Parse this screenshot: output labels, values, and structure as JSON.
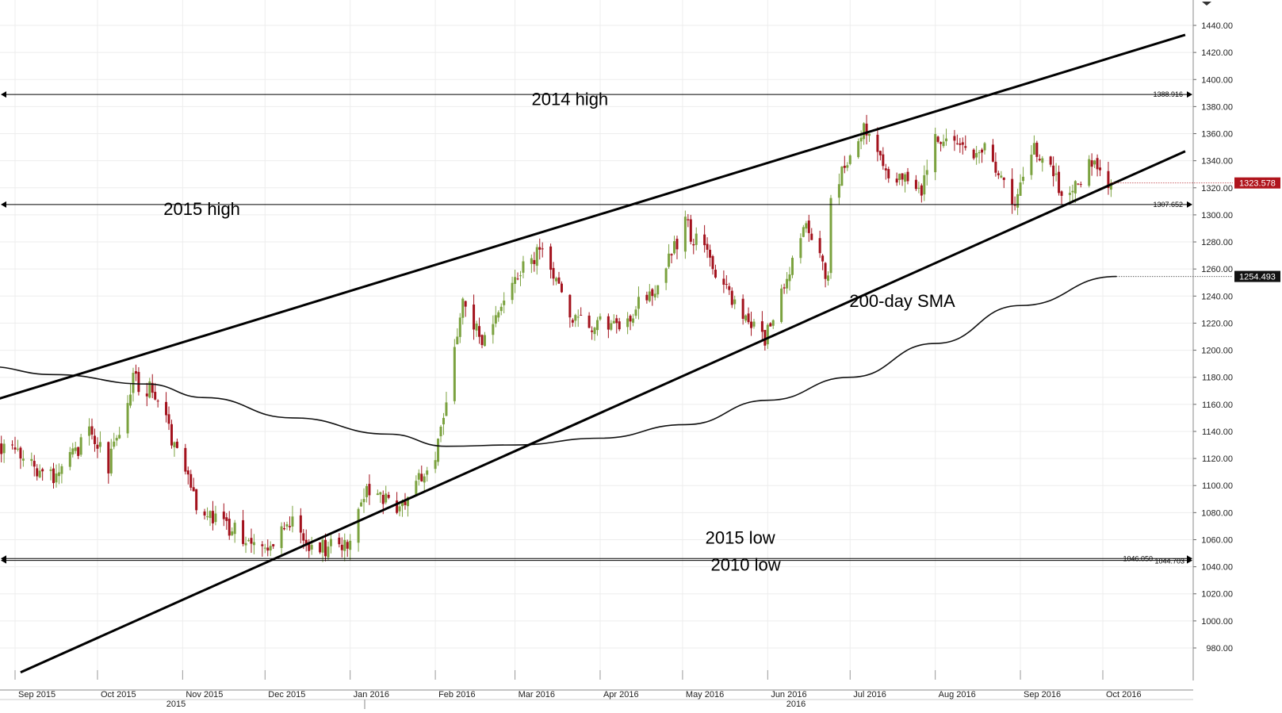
{
  "chart_data": {
    "type": "candlestick",
    "ylim": [
      960,
      1460
    ],
    "y_ticks": [
      "980.00",
      "1000.00",
      "1020.00",
      "1040.00",
      "1060.00",
      "1080.00",
      "1100.00",
      "1120.00",
      "1140.00",
      "1160.00",
      "1180.00",
      "1200.00",
      "1220.00",
      "1240.00",
      "1260.00",
      "1280.00",
      "1300.00",
      "1320.00",
      "1340.00",
      "1360.00",
      "1380.00",
      "1400.00",
      "1420.00",
      "1440.00"
    ],
    "months": [
      "Sep 2015",
      "Oct 2015",
      "Nov 2015",
      "Dec 2015",
      "Jan 2016",
      "Feb 2016",
      "Mar 2016",
      "Apr 2016",
      "May 2016",
      "Jun 2016",
      "Jul 2016",
      "Aug 2016",
      "Sep 2016",
      "Oct 2016"
    ],
    "years": [
      "2015",
      "2016"
    ],
    "price_keypoints": [
      {
        "date": "2015-08-24",
        "close": 1130
      },
      {
        "date": "2015-09-03",
        "close": 1122
      },
      {
        "date": "2015-09-16",
        "close": 1103
      },
      {
        "date": "2015-09-28",
        "close": 1140
      },
      {
        "date": "2015-10-05",
        "close": 1115
      },
      {
        "date": "2015-10-14",
        "close": 1178
      },
      {
        "date": "2015-10-22",
        "close": 1168
      },
      {
        "date": "2015-11-06",
        "close": 1088
      },
      {
        "date": "2015-11-18",
        "close": 1068
      },
      {
        "date": "2015-12-02",
        "close": 1055
      },
      {
        "date": "2015-12-10",
        "close": 1075
      },
      {
        "date": "2015-12-17",
        "close": 1050
      },
      {
        "date": "2015-12-31",
        "close": 1060
      },
      {
        "date": "2016-01-08",
        "close": 1098
      },
      {
        "date": "2016-01-18",
        "close": 1085
      },
      {
        "date": "2016-02-01",
        "close": 1120
      },
      {
        "date": "2016-02-11",
        "close": 1240
      },
      {
        "date": "2016-02-18",
        "close": 1208
      },
      {
        "date": "2016-03-04",
        "close": 1262
      },
      {
        "date": "2016-03-10",
        "close": 1272
      },
      {
        "date": "2016-03-22",
        "close": 1225
      },
      {
        "date": "2016-04-06",
        "close": 1215
      },
      {
        "date": "2016-04-21",
        "close": 1245
      },
      {
        "date": "2016-05-02",
        "close": 1293
      },
      {
        "date": "2016-05-11",
        "close": 1265
      },
      {
        "date": "2016-05-24",
        "close": 1225
      },
      {
        "date": "2016-05-31",
        "close": 1208
      },
      {
        "date": "2016-06-08",
        "close": 1250
      },
      {
        "date": "2016-06-15",
        "close": 1290
      },
      {
        "date": "2016-06-23",
        "close": 1255
      },
      {
        "date": "2016-06-24",
        "close": 1315
      },
      {
        "date": "2016-07-06",
        "close": 1362
      },
      {
        "date": "2016-07-15",
        "close": 1330
      },
      {
        "date": "2016-07-27",
        "close": 1320
      },
      {
        "date": "2016-08-02",
        "close": 1360
      },
      {
        "date": "2016-08-10",
        "close": 1345
      },
      {
        "date": "2016-08-18",
        "close": 1350
      },
      {
        "date": "2016-08-30",
        "close": 1310
      },
      {
        "date": "2016-09-06",
        "close": 1347
      },
      {
        "date": "2016-09-19",
        "close": 1312
      },
      {
        "date": "2016-09-27",
        "close": 1338
      },
      {
        "date": "2016-10-04",
        "close": 1323.578
      }
    ],
    "sma_200": [
      {
        "date": "2015-08-21",
        "value": 1188
      },
      {
        "date": "2015-09-15",
        "value": 1182
      },
      {
        "date": "2015-10-19",
        "value": 1175
      },
      {
        "date": "2015-11-09",
        "value": 1165
      },
      {
        "date": "2015-12-11",
        "value": 1150
      },
      {
        "date": "2016-01-15",
        "value": 1138
      },
      {
        "date": "2016-02-05",
        "value": 1129
      },
      {
        "date": "2016-03-01",
        "value": 1130
      },
      {
        "date": "2016-04-01",
        "value": 1135
      },
      {
        "date": "2016-05-02",
        "value": 1145
      },
      {
        "date": "2016-06-01",
        "value": 1163
      },
      {
        "date": "2016-07-01",
        "value": 1180
      },
      {
        "date": "2016-08-01",
        "value": 1205
      },
      {
        "date": "2016-09-01",
        "value": 1233
      },
      {
        "date": "2016-10-06",
        "value": 1254.493
      }
    ],
    "trendlines": [
      {
        "name": "upper channel",
        "points": [
          {
            "date": "2015-08-21",
            "value": 1161
          },
          {
            "date": "2016-10-31",
            "value": 1433
          }
        ]
      },
      {
        "name": "lower channel",
        "points": [
          {
            "date": "2015-09-03",
            "value": 962
          },
          {
            "date": "2016-10-31",
            "value": 1347
          }
        ]
      }
    ],
    "horizontal_levels": [
      {
        "value": 1388.916,
        "label": "1388.916"
      },
      {
        "value": 1307.652,
        "label": "1307.652"
      },
      {
        "value": 1046.05,
        "label": "1046.050"
      },
      {
        "value": 1044.703,
        "label": "1044.703"
      }
    ],
    "price_tags": [
      {
        "value": 1323.578,
        "label": "1323.578",
        "color": "#b0151d"
      },
      {
        "value": 1254.493,
        "label": "1254.493",
        "color": "#111111"
      }
    ],
    "annotations": [
      {
        "text": "2014 high",
        "date": "2016-03-21",
        "value": 1381
      },
      {
        "text": "2015 high",
        "date": "2015-11-08",
        "value": 1300
      },
      {
        "text": "200-day SMA",
        "date": "2016-07-20",
        "value": 1232
      },
      {
        "text": "2015 low",
        "date": "2016-05-22",
        "value": 1057
      },
      {
        "text": "2010 low",
        "date": "2016-05-24",
        "value": 1037
      }
    ],
    "colors": {
      "up": "#7ba23f",
      "down": "#a3121d",
      "line": "#000000",
      "grid": "#ededed"
    }
  }
}
